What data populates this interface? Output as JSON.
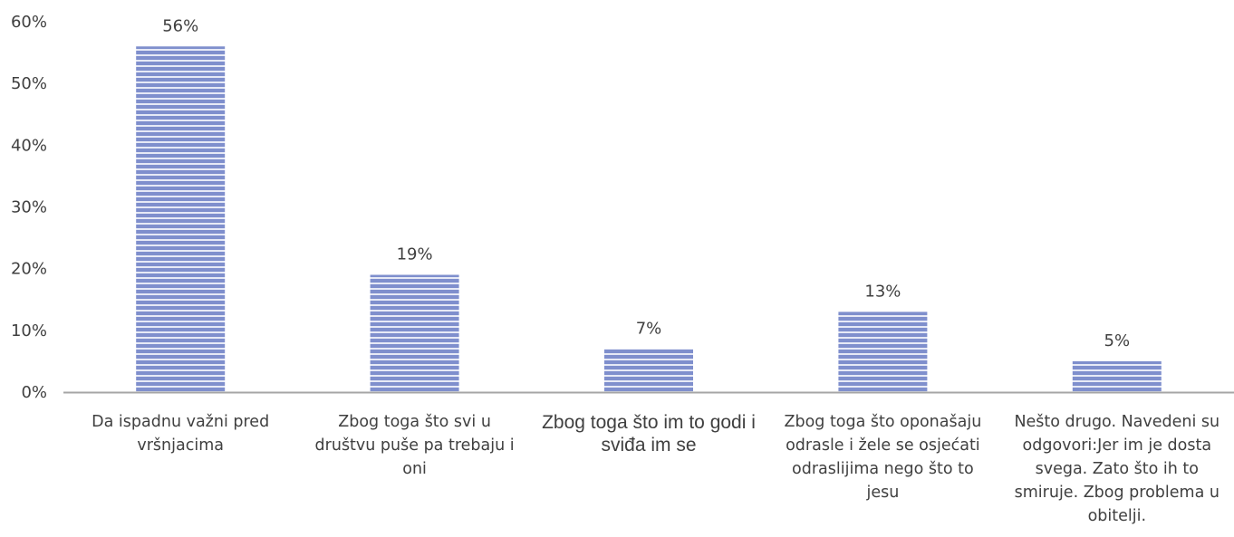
{
  "chart_data": {
    "type": "bar",
    "categories": [
      "Da ispadnu važni pred vršnjacima",
      "Zbog toga što svi u društvu puše pa trebaju i oni",
      "Zbog toga što im to godi i sviđa im se",
      "Zbog toga što oponašaju odrasle i žele se osjećati odraslijima nego što to jesu",
      "Nešto drugo. Navedeni su odgovori:Jer im je dosta svega. Zato što ih to smiruje. Zbog problema u obitelji."
    ],
    "values": [
      56,
      19,
      7,
      13,
      5
    ],
    "data_labels": [
      "56%",
      "19%",
      "7%",
      "13%",
      "5%"
    ],
    "ylim": [
      0,
      60
    ],
    "y_ticks": [
      0,
      10,
      20,
      30,
      40,
      50,
      60
    ],
    "y_tick_labels": [
      "0%",
      "10%",
      "20%",
      "30%",
      "40%",
      "50%",
      "60%"
    ],
    "title": "",
    "xlabel": "",
    "ylabel": "",
    "grid": false,
    "legend": "none",
    "bar_color": "#7f8fcd",
    "bar_stripe_color": "#e6e9f6",
    "axis_color": "#a6a6a6"
  }
}
